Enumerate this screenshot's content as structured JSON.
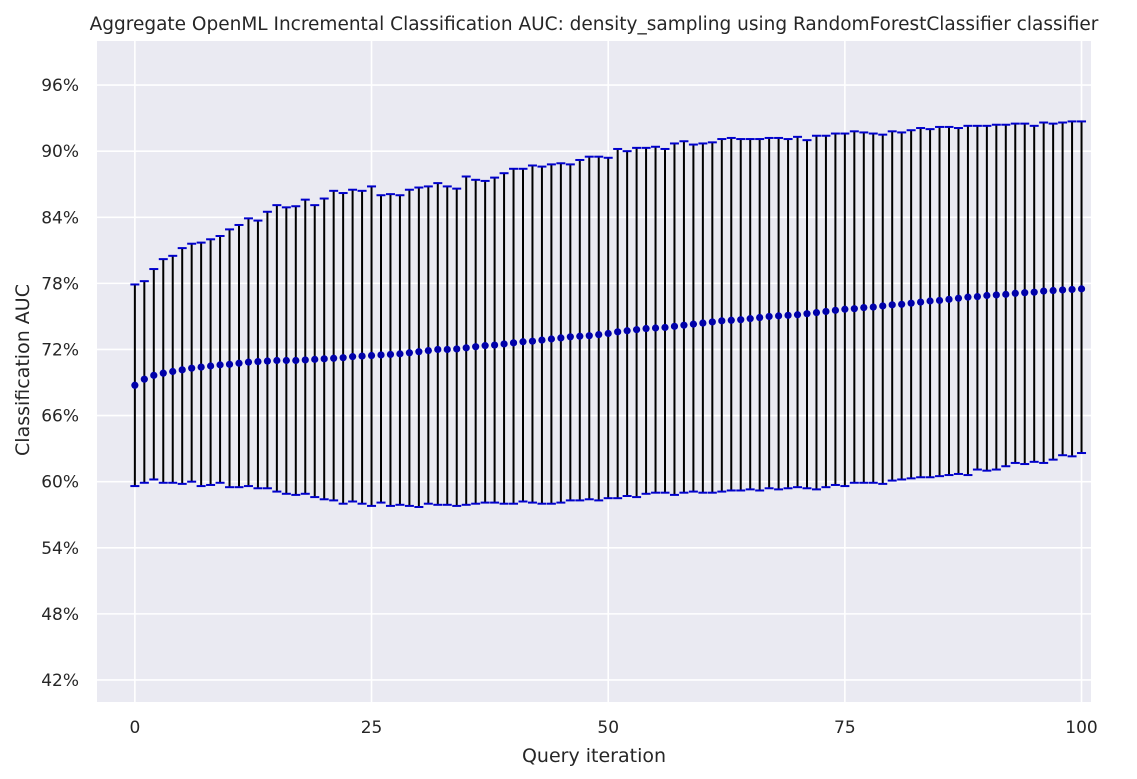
{
  "chart_data": {
    "type": "scatter",
    "title": "Aggregate OpenML Incremental Classification AUC: density_sampling using RandomForestClassifier classifier",
    "xlabel": "Query iteration",
    "ylabel": "Classification AUC",
    "xlim": [
      -4,
      101
    ],
    "ylim": [
      0.4,
      1.0
    ],
    "xticks": [
      0,
      25,
      50,
      75,
      100
    ],
    "yticks": [
      0.42,
      0.48,
      0.54,
      0.6,
      0.66,
      0.72,
      0.78,
      0.84,
      0.9,
      0.96
    ],
    "xtick_labels": [
      "0",
      "25",
      "50",
      "75",
      "100"
    ],
    "ytick_labels": [
      "42%",
      "48%",
      "54%",
      "60%",
      "66%",
      "72%",
      "78%",
      "84%",
      "90%",
      "96%"
    ],
    "grid": true,
    "background": "#eaeaf2",
    "marker_color": "#0000aa",
    "errorbar_color": "#000000",
    "cap_color": "#0000cc",
    "x": [
      0,
      1,
      2,
      3,
      4,
      5,
      6,
      7,
      8,
      9,
      10,
      11,
      12,
      13,
      14,
      15,
      16,
      17,
      18,
      19,
      20,
      21,
      22,
      23,
      24,
      25,
      26,
      27,
      28,
      29,
      30,
      31,
      32,
      33,
      34,
      35,
      36,
      37,
      38,
      39,
      40,
      41,
      42,
      43,
      44,
      45,
      46,
      47,
      48,
      49,
      50,
      51,
      52,
      53,
      54,
      55,
      56,
      57,
      58,
      59,
      60,
      61,
      62,
      63,
      64,
      65,
      66,
      67,
      68,
      69,
      70,
      71,
      72,
      73,
      74,
      75,
      76,
      77,
      78,
      79,
      80,
      81,
      82,
      83,
      84,
      85,
      86,
      87,
      88,
      89,
      90,
      91,
      92,
      93,
      94,
      95,
      96,
      97,
      98,
      99,
      100
    ],
    "mean": [
      0.6875,
      0.693,
      0.6965,
      0.6985,
      0.7,
      0.7015,
      0.703,
      0.704,
      0.705,
      0.706,
      0.7065,
      0.7075,
      0.7085,
      0.709,
      0.7095,
      0.71,
      0.71,
      0.71,
      0.7105,
      0.711,
      0.7115,
      0.712,
      0.7125,
      0.7135,
      0.714,
      0.7145,
      0.715,
      0.7155,
      0.716,
      0.717,
      0.718,
      0.719,
      0.72,
      0.72,
      0.7205,
      0.7215,
      0.7225,
      0.7235,
      0.724,
      0.725,
      0.726,
      0.727,
      0.7275,
      0.7285,
      0.7295,
      0.7305,
      0.7315,
      0.732,
      0.7325,
      0.7335,
      0.7345,
      0.736,
      0.737,
      0.738,
      0.739,
      0.7395,
      0.74,
      0.741,
      0.742,
      0.743,
      0.744,
      0.745,
      0.746,
      0.7465,
      0.747,
      0.748,
      0.749,
      0.75,
      0.7505,
      0.751,
      0.7515,
      0.7525,
      0.7535,
      0.7545,
      0.7555,
      0.7565,
      0.757,
      0.758,
      0.7585,
      0.7595,
      0.7605,
      0.761,
      0.762,
      0.763,
      0.764,
      0.7645,
      0.7655,
      0.7665,
      0.7675,
      0.768,
      0.769,
      0.7695,
      0.77,
      0.771,
      0.7715,
      0.772,
      0.773,
      0.7735,
      0.774,
      0.7745,
      0.775
    ],
    "upper": [
      0.779,
      0.782,
      0.793,
      0.802,
      0.805,
      0.812,
      0.816,
      0.817,
      0.82,
      0.823,
      0.829,
      0.833,
      0.839,
      0.837,
      0.845,
      0.851,
      0.849,
      0.85,
      0.856,
      0.851,
      0.857,
      0.864,
      0.862,
      0.865,
      0.864,
      0.868,
      0.86,
      0.861,
      0.86,
      0.865,
      0.867,
      0.868,
      0.871,
      0.868,
      0.866,
      0.877,
      0.874,
      0.873,
      0.876,
      0.88,
      0.884,
      0.884,
      0.887,
      0.886,
      0.888,
      0.889,
      0.888,
      0.892,
      0.895,
      0.895,
      0.894,
      0.902,
      0.9,
      0.903,
      0.903,
      0.904,
      0.902,
      0.907,
      0.909,
      0.906,
      0.907,
      0.908,
      0.911,
      0.912,
      0.911,
      0.911,
      0.911,
      0.912,
      0.912,
      0.911,
      0.913,
      0.91,
      0.914,
      0.914,
      0.916,
      0.916,
      0.918,
      0.917,
      0.916,
      0.915,
      0.918,
      0.917,
      0.919,
      0.921,
      0.92,
      0.922,
      0.922,
      0.921,
      0.923,
      0.923,
      0.923,
      0.924,
      0.924,
      0.925,
      0.925,
      0.923,
      0.926,
      0.925,
      0.926,
      0.927,
      0.927
    ],
    "lower": [
      0.596,
      0.599,
      0.602,
      0.599,
      0.599,
      0.598,
      0.6,
      0.596,
      0.597,
      0.599,
      0.595,
      0.595,
      0.596,
      0.594,
      0.594,
      0.591,
      0.589,
      0.588,
      0.589,
      0.586,
      0.584,
      0.583,
      0.58,
      0.582,
      0.58,
      0.578,
      0.581,
      0.578,
      0.579,
      0.578,
      0.577,
      0.58,
      0.579,
      0.579,
      0.578,
      0.579,
      0.58,
      0.581,
      0.581,
      0.58,
      0.58,
      0.582,
      0.581,
      0.58,
      0.58,
      0.581,
      0.583,
      0.583,
      0.584,
      0.583,
      0.585,
      0.585,
      0.587,
      0.586,
      0.589,
      0.59,
      0.59,
      0.588,
      0.59,
      0.591,
      0.59,
      0.59,
      0.591,
      0.592,
      0.592,
      0.593,
      0.592,
      0.594,
      0.593,
      0.594,
      0.595,
      0.594,
      0.593,
      0.595,
      0.597,
      0.596,
      0.599,
      0.599,
      0.599,
      0.598,
      0.601,
      0.602,
      0.603,
      0.604,
      0.604,
      0.605,
      0.606,
      0.607,
      0.606,
      0.611,
      0.61,
      0.611,
      0.614,
      0.617,
      0.616,
      0.618,
      0.617,
      0.62,
      0.624,
      0.623,
      0.626
    ]
  }
}
